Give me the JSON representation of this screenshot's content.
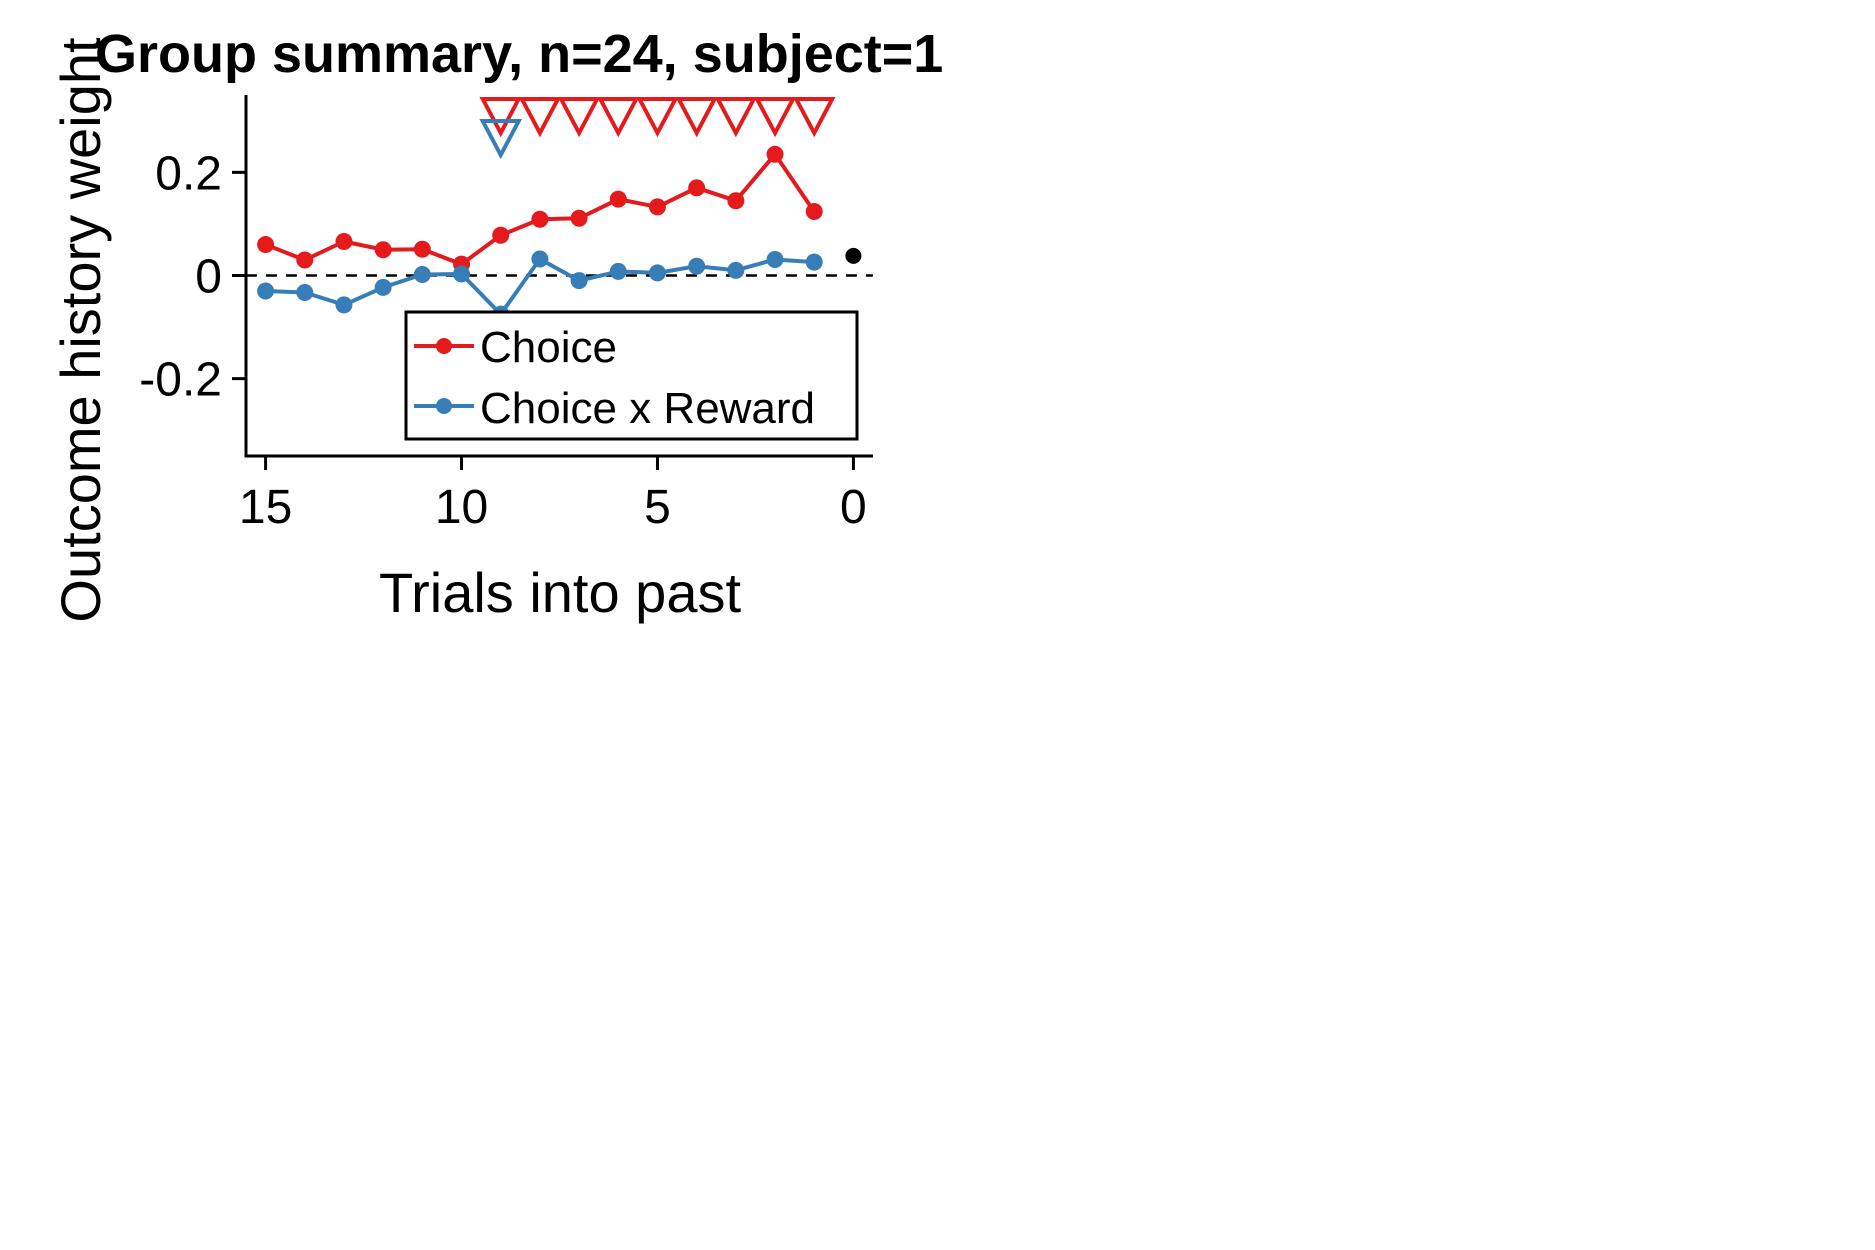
{
  "chart_data": {
    "type": "line",
    "title": "Group summary, n=24, subject=1",
    "xlabel": "Trials into past",
    "ylabel": "Outcome history weight",
    "xlim": [
      15.5,
      -0.5
    ],
    "ylim": [
      -0.35,
      0.35
    ],
    "x_ticks": [
      15,
      10,
      5,
      0
    ],
    "x_tick_labels": [
      "15",
      "10",
      "5",
      "0"
    ],
    "y_ticks": [
      0.2,
      0,
      -0.2
    ],
    "y_tick_labels": [
      "0.2",
      "0",
      "-0.2"
    ],
    "grid": false,
    "zero_line": "dashed",
    "legend_position": "lower-right",
    "x": [
      15,
      14,
      13,
      12,
      11,
      10,
      9,
      8,
      7,
      6,
      5,
      4,
      3,
      2,
      1
    ],
    "series": [
      {
        "name": "Choice",
        "color": "#e41a1c",
        "values": [
          0.06,
          0.03,
          0.066,
          0.05,
          0.051,
          0.022,
          0.078,
          0.109,
          0.111,
          0.148,
          0.133,
          0.17,
          0.145,
          0.235,
          0.124
        ],
        "significant_x": [
          9,
          8,
          7,
          6,
          5,
          4,
          3,
          2,
          1
        ]
      },
      {
        "name": "Choice x Reward",
        "color": "#377eb8",
        "values": [
          -0.03,
          -0.033,
          -0.057,
          -0.023,
          0.002,
          0.003,
          -0.075,
          0.032,
          -0.01,
          0.008,
          0.005,
          0.018,
          0.01,
          0.031,
          0.026
        ],
        "significant_x": [
          9
        ]
      }
    ],
    "extra_point": {
      "x": 0,
      "y": 0.038,
      "color": "#000000"
    }
  }
}
